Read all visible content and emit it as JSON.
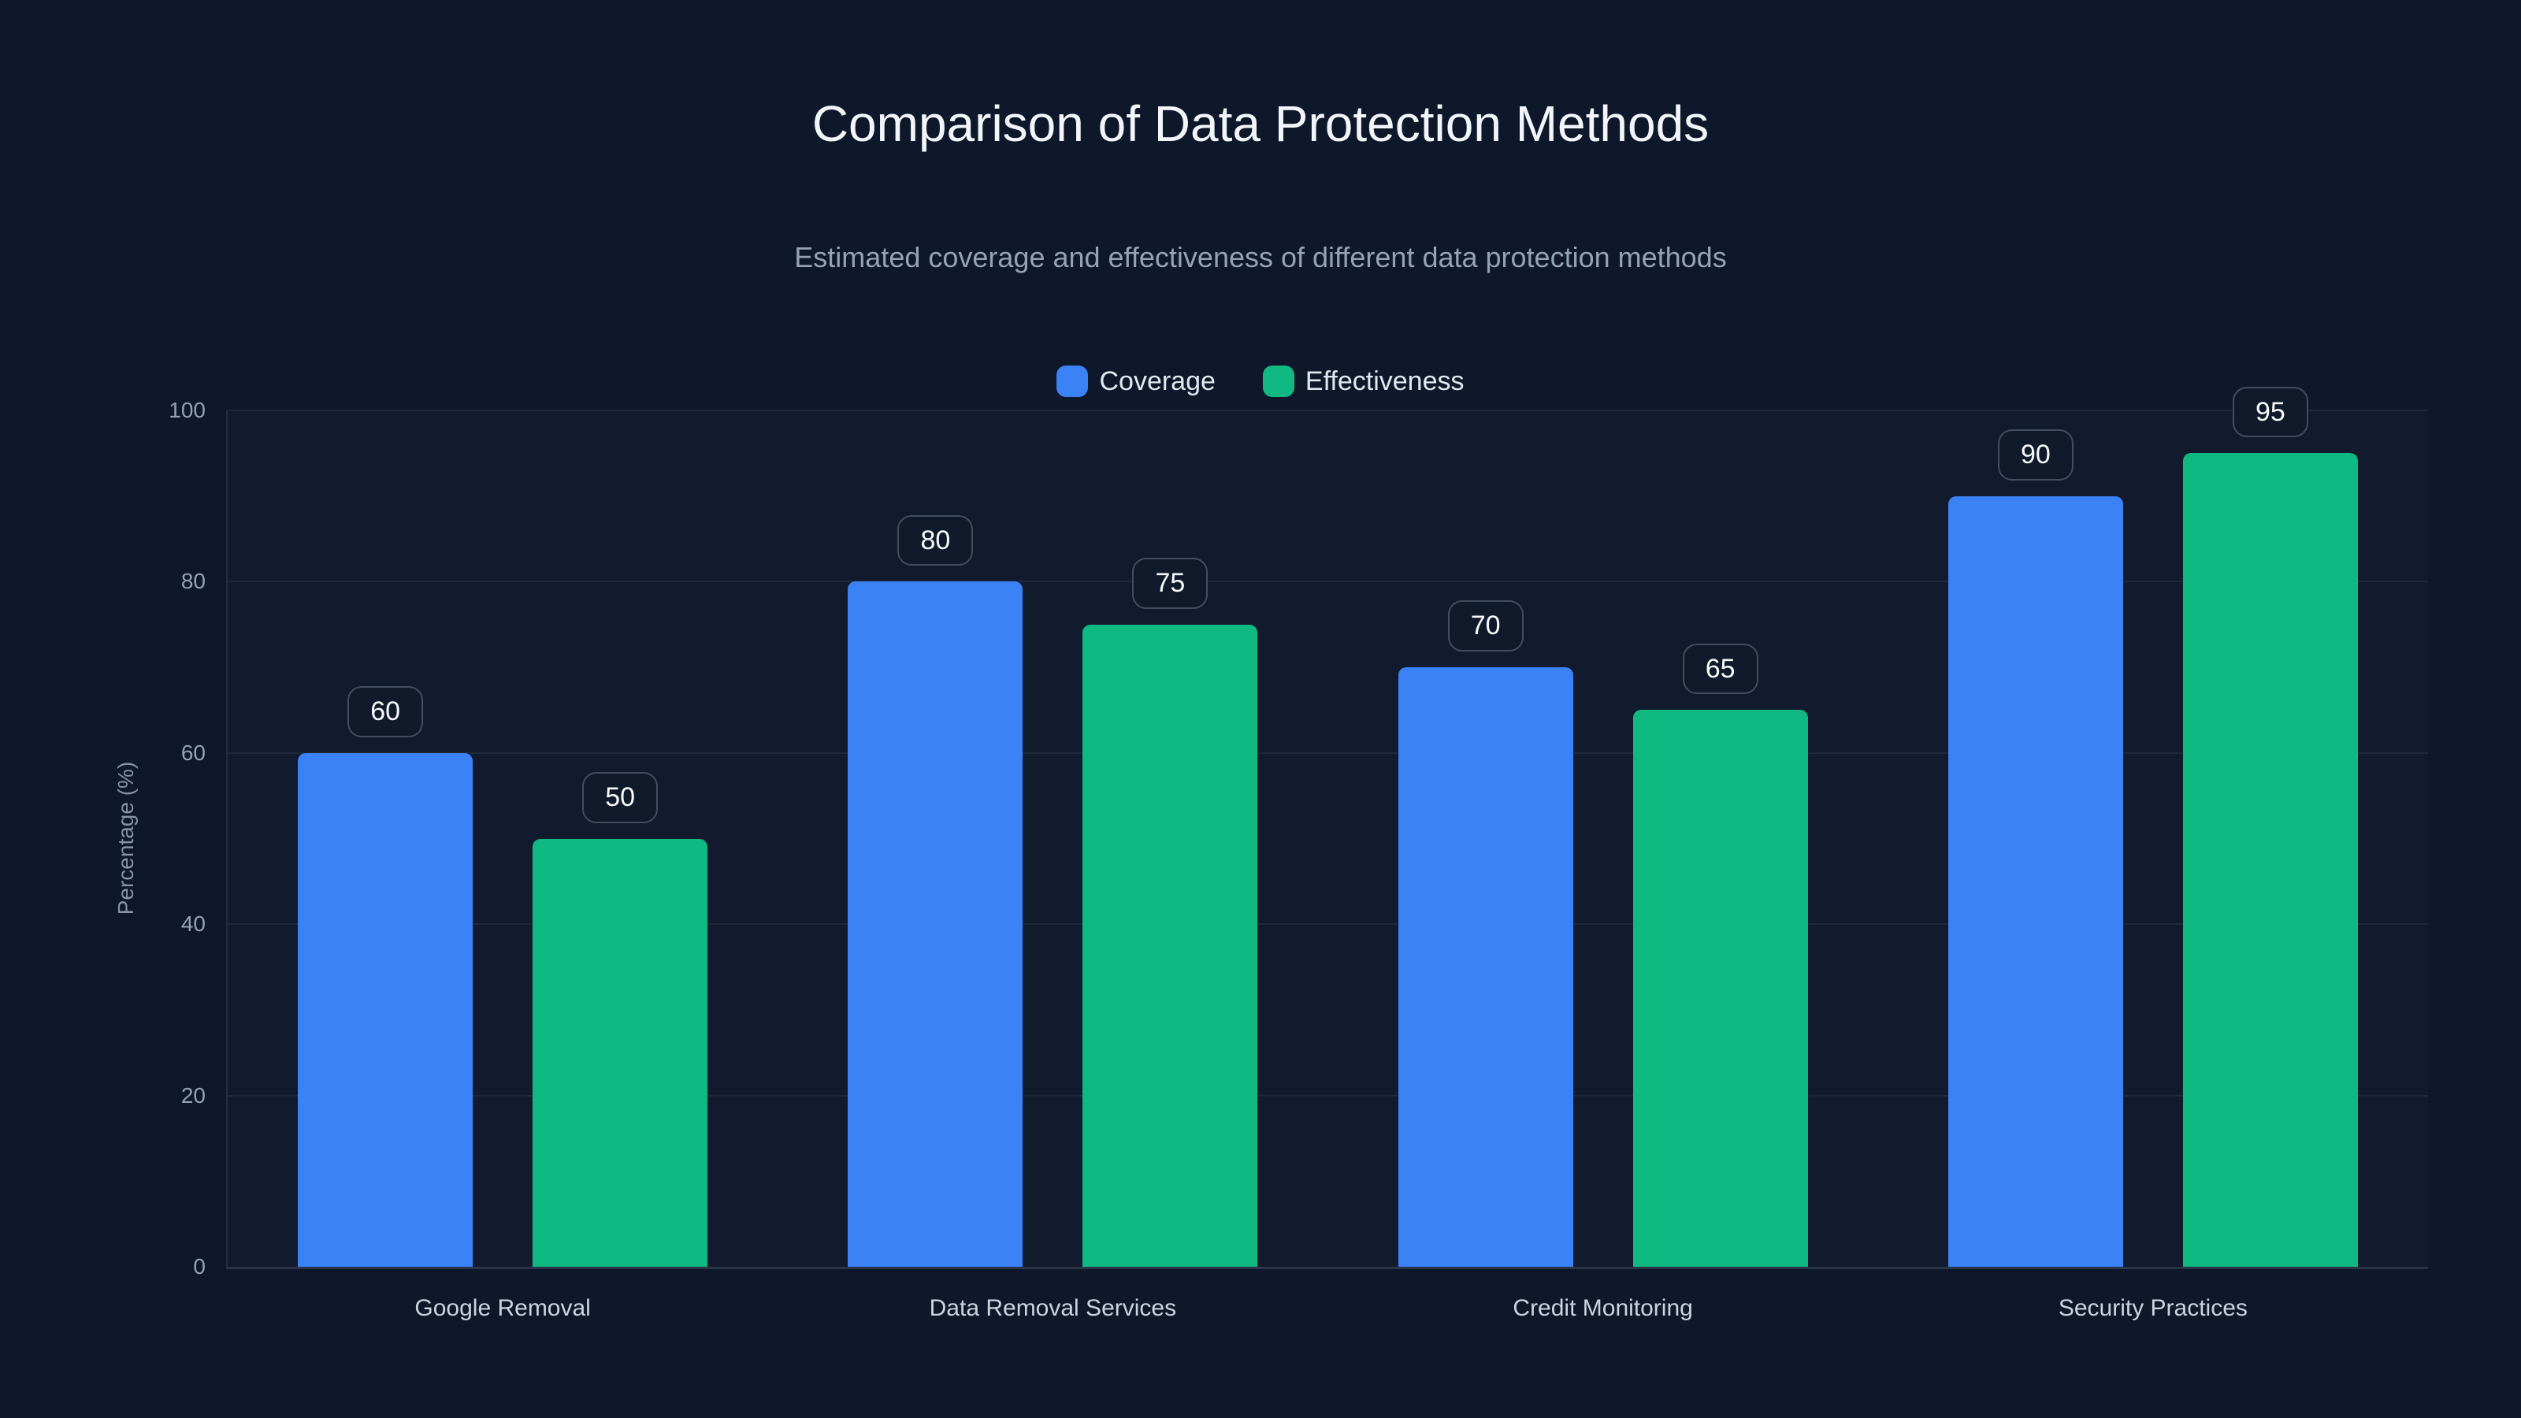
{
  "chart_data": {
    "type": "bar",
    "title": "Comparison of Data Protection Methods",
    "subtitle": "Estimated coverage and effectiveness of different data protection methods",
    "categories": [
      "Google Removal",
      "Data Removal Services",
      "Credit Monitoring",
      "Security Practices"
    ],
    "series": [
      {
        "name": "Coverage",
        "color": "#3b82f6",
        "values": [
          60,
          80,
          70,
          90
        ]
      },
      {
        "name": "Effectiveness",
        "color": "#10b981",
        "values": [
          50,
          75,
          65,
          95
        ]
      }
    ],
    "xlabel": "",
    "ylabel": "Percentage (%)",
    "ylim": [
      0,
      100
    ],
    "ytick_step": 20,
    "yticks": [
      0,
      20,
      40,
      60,
      80,
      100
    ],
    "grid": true,
    "legend_position": "top",
    "value_labels": true,
    "theme": {
      "background": "#0f172a",
      "title_color": "#f2f6fa",
      "subtitle_color": "#94a3b8",
      "tick_color": "#94a3b8",
      "category_color": "#cbd5e1",
      "gridline_color": "#1e2939",
      "badge_border_color": "#414e61",
      "badge_text_color": "#f8fafc"
    }
  }
}
